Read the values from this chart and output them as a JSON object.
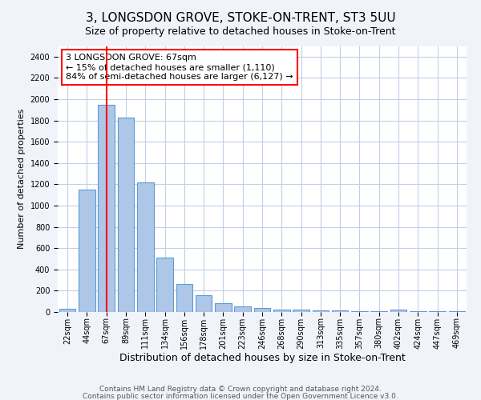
{
  "title": "3, LONGSDON GROVE, STOKE-ON-TRENT, ST3 5UU",
  "subtitle": "Size of property relative to detached houses in Stoke-on-Trent",
  "xlabel": "Distribution of detached houses by size in Stoke-on-Trent",
  "ylabel": "Number of detached properties",
  "categories": [
    "22sqm",
    "44sqm",
    "67sqm",
    "89sqm",
    "111sqm",
    "134sqm",
    "156sqm",
    "178sqm",
    "201sqm",
    "223sqm",
    "246sqm",
    "268sqm",
    "290sqm",
    "313sqm",
    "335sqm",
    "357sqm",
    "380sqm",
    "402sqm",
    "424sqm",
    "447sqm",
    "469sqm"
  ],
  "values": [
    30,
    1150,
    1950,
    1830,
    1220,
    510,
    265,
    155,
    85,
    50,
    40,
    20,
    20,
    18,
    12,
    10,
    8,
    20,
    5,
    5,
    5
  ],
  "bar_color": "#aec6e8",
  "bar_edge_color": "#5b9bd5",
  "vline_x_index": 2,
  "vline_color": "red",
  "annotation_line1": "3 LONGSDON GROVE: 67sqm",
  "annotation_line2": "← 15% of detached houses are smaller (1,110)",
  "annotation_line3": "84% of semi-detached houses are larger (6,127) →",
  "annotation_box_color": "white",
  "annotation_box_edge_color": "red",
  "ylim": [
    0,
    2500
  ],
  "yticks": [
    0,
    200,
    400,
    600,
    800,
    1000,
    1200,
    1400,
    1600,
    1800,
    2000,
    2200,
    2400
  ],
  "footnote1": "Contains HM Land Registry data © Crown copyright and database right 2024.",
  "footnote2": "Contains public sector information licensed under the Open Government Licence v3.0.",
  "background_color": "#f0f4fa",
  "plot_bg_color": "#ffffff",
  "grid_color": "#c0d0e8",
  "title_fontsize": 11,
  "subtitle_fontsize": 9,
  "xlabel_fontsize": 9,
  "ylabel_fontsize": 8,
  "tick_fontsize": 7,
  "annotation_fontsize": 8,
  "footnote_fontsize": 6.5
}
